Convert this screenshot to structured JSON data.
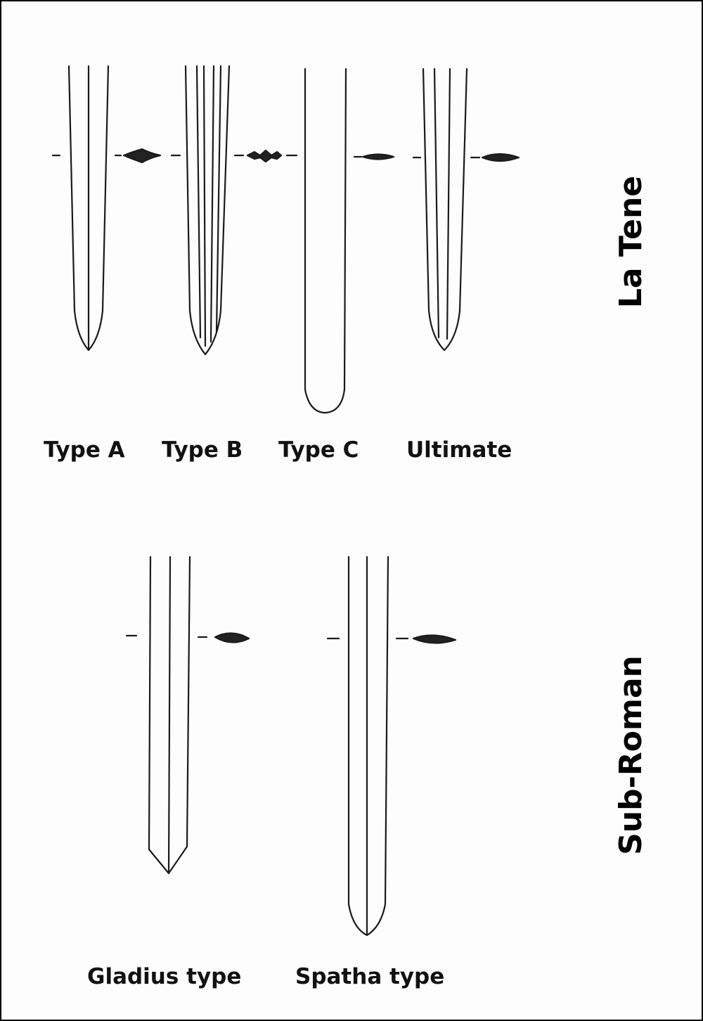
{
  "sections": {
    "la_tene": {
      "heading": "La Tene",
      "types": [
        {
          "label": "Type A"
        },
        {
          "label": "Type B"
        },
        {
          "label": "Type C"
        },
        {
          "label": "Ultimate"
        }
      ]
    },
    "sub_roman": {
      "heading": "Sub-Roman",
      "types": [
        {
          "label": "Gladius type"
        },
        {
          "label": "Spatha type"
        }
      ]
    }
  },
  "colors": {
    "ink": "#1a1a1a",
    "fill": "#222222",
    "background": "#fdfdfd",
    "border": "#000000"
  }
}
